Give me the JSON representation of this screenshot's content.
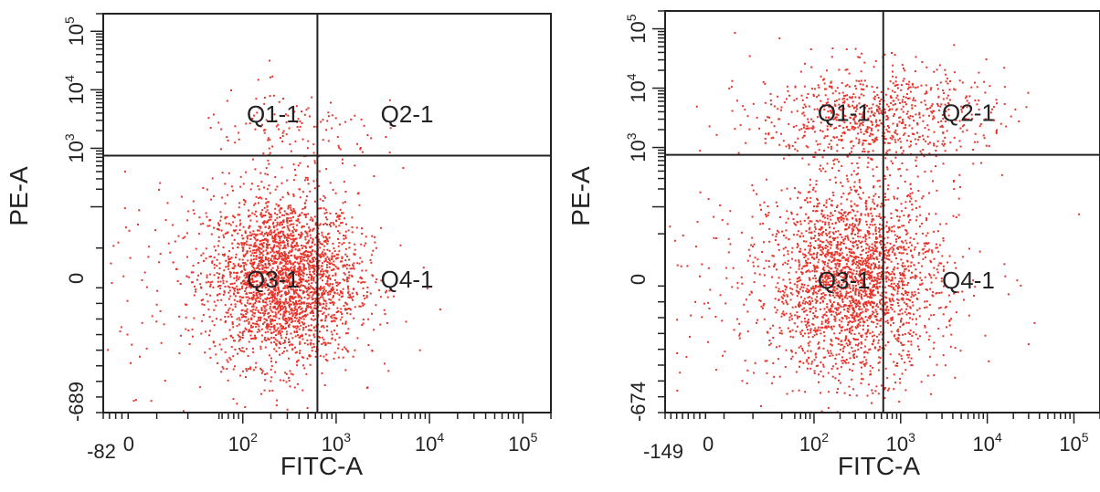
{
  "chart_data": [
    {
      "type": "scatter",
      "xlabel": "FITC-A",
      "ylabel": "PE-A",
      "x_scale": "biexponential",
      "y_scale": "biexponential",
      "xlim": [
        -82,
        200000
      ],
      "ylim": [
        -689,
        200000
      ],
      "x_ticks": [
        {
          "label": "-82",
          "value": -82
        },
        {
          "label": "0",
          "value": 0
        },
        {
          "label": "10",
          "exp": "2",
          "value": 100
        },
        {
          "label": "10",
          "exp": "3",
          "value": 1000
        },
        {
          "label": "10",
          "exp": "4",
          "value": 10000
        },
        {
          "label": "10",
          "exp": "5",
          "value": 100000
        }
      ],
      "y_ticks": [
        {
          "label": "-689",
          "value": -689
        },
        {
          "label": "0",
          "value": 0
        },
        {
          "label": "10",
          "exp": "3",
          "value": 1000
        },
        {
          "label": "10",
          "exp": "4",
          "value": 10000
        },
        {
          "label": "10",
          "exp": "5",
          "value": 100000
        }
      ],
      "gate": {
        "x": 630,
        "y": 750
      },
      "quadrants": [
        {
          "label": "Q1-1",
          "x": 110,
          "y": 4000
        },
        {
          "label": "Q2-1",
          "x": 3000,
          "y": 4000
        },
        {
          "label": "Q3-1",
          "x": 110,
          "y": 0
        },
        {
          "label": "Q4-1",
          "x": 3000,
          "y": 0
        }
      ],
      "point_color": "#e8342a",
      "populations": [
        {
          "name": "",
          "x_center": 270,
          "x_spread": 0.18,
          "y_center": 0,
          "y_spread": 0.33,
          "count": 2600
        },
        {
          "name": "",
          "x_center": 90,
          "x_spread": 0.38,
          "y_center": 0,
          "y_spread": 0.4,
          "count": 220
        },
        {
          "name": "",
          "x_center": 300,
          "x_spread": 0.22,
          "y_center": 1600,
          "y_spread": 0.18,
          "count": 110
        },
        {
          "name": "",
          "x_center": 1100,
          "x_spread": 0.2,
          "y_center": 2200,
          "y_spread": 0.2,
          "count": 25
        }
      ]
    },
    {
      "type": "scatter",
      "xlabel": "FITC-A",
      "ylabel": "PE-A",
      "x_scale": "biexponential",
      "y_scale": "biexponential",
      "xlim": [
        -149,
        200000
      ],
      "ylim": [
        -674,
        200000
      ],
      "x_ticks": [
        {
          "label": "-149",
          "value": -149
        },
        {
          "label": "0",
          "value": 0
        },
        {
          "label": "10",
          "exp": "2",
          "value": 100
        },
        {
          "label": "10",
          "exp": "3",
          "value": 1000
        },
        {
          "label": "10",
          "exp": "4",
          "value": 10000
        },
        {
          "label": "10",
          "exp": "5",
          "value": 100000
        }
      ],
      "y_ticks": [
        {
          "label": "-674",
          "value": -674
        },
        {
          "label": "0",
          "value": 0
        },
        {
          "label": "10",
          "exp": "3",
          "value": 1000
        },
        {
          "label": "10",
          "exp": "4",
          "value": 10000
        },
        {
          "label": "10",
          "exp": "5",
          "value": 100000
        }
      ],
      "gate": {
        "x": 630,
        "y": 750
      },
      "quadrants": [
        {
          "label": "Q1-1",
          "x": 110,
          "y": 4000
        },
        {
          "label": "Q2-1",
          "x": 3000,
          "y": 4000
        },
        {
          "label": "Q3-1",
          "x": 110,
          "y": 0
        },
        {
          "label": "Q4-1",
          "x": 3000,
          "y": 0
        }
      ],
      "point_color": "#e8342a",
      "populations": [
        {
          "name": "",
          "x_center": 290,
          "x_spread": 0.22,
          "y_center": 0,
          "y_spread": 0.36,
          "count": 2300
        },
        {
          "name": "",
          "x_center": 60,
          "x_spread": 0.45,
          "y_center": 0,
          "y_spread": 0.42,
          "count": 280
        },
        {
          "name": "",
          "x_center": 430,
          "x_spread": 0.3,
          "y_center": 3500,
          "y_spread": 0.2,
          "count": 700
        },
        {
          "name": "",
          "x_center": 1000,
          "x_spread": 0.28,
          "y_center": 3300,
          "y_spread": 0.16,
          "count": 120
        }
      ]
    }
  ]
}
